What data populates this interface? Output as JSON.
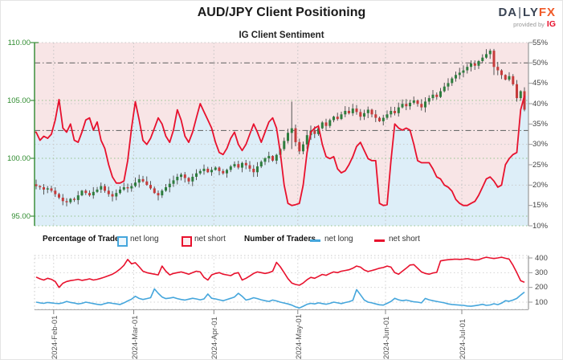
{
  "header": {
    "title": "AUD/JPY Client Positioning",
    "subtitle": "IG Client Sentiment",
    "logo": {
      "brand_left": "DA",
      "brand_bar": "|",
      "brand_right": "LY",
      "brand_accent": "FX",
      "provided_by": "provided by",
      "provider": "IG"
    }
  },
  "legend": {
    "pct_title": "Percentage of Traders",
    "pct_net_long": "net long",
    "pct_net_short": "net short",
    "num_title": "Number of Traders",
    "num_net_long": "net long",
    "num_net_short": "net short"
  },
  "main_chart": {
    "left_axis": [
      "110.00",
      "105.00",
      "100.00",
      "95.00"
    ],
    "right_axis": [
      "55%",
      "50%",
      "45%",
      "40%",
      "35%",
      "30%",
      "25%",
      "20%",
      "15%",
      "10%"
    ]
  },
  "bottom_chart": {
    "right_axis": [
      "400",
      "300",
      "200",
      "100"
    ]
  },
  "x_axis": {
    "labels": [
      "2024-Feb-01",
      "2024-Mar-01",
      "2024-Apr-01",
      "2024-May-01",
      "2024-Jun-01",
      "2024-Jul-01"
    ]
  },
  "colors": {
    "sentiment_red": "#e8112d",
    "traders_blue": "#45a6dc",
    "candle_up": "#2e7d3e",
    "candle_down": "#c63b3b",
    "wick": "#555555",
    "fill_short": "#f8e5e6",
    "fill_long": "#ddeef8",
    "axis_green": "#3c8f3c",
    "grid_green": "#94c38c",
    "grid_gray": "#c9c9c9",
    "refline_gray": "#6e6e6e",
    "spine_gray": "#999999"
  },
  "chart_data": {
    "type": [
      "candlestick+line",
      "line"
    ],
    "title": "AUD/JPY Client Positioning — IG Client Sentiment",
    "x_range": [
      "2024-Jan-25",
      "2024-Jul-23"
    ],
    "price_axis_ticks": [
      110.0,
      105.0,
      100.0,
      95.0
    ],
    "pct_axis_range": [
      10,
      55
    ],
    "count_axis_ticks": [
      400,
      300,
      200,
      100
    ],
    "reference_lines_pct": [
      50,
      33.4
    ],
    "month_start_indices": [
      5,
      26,
      47,
      69,
      92,
      112
    ],
    "price_close": [
      97.6,
      97.5,
      97.3,
      97.4,
      97.2,
      96.9,
      96.6,
      96.3,
      96.2,
      96.5,
      96.4,
      96.8,
      97.2,
      97.0,
      96.8,
      97.1,
      97.3,
      97.6,
      97.2,
      96.9,
      96.7,
      97.0,
      97.3,
      97.5,
      97.4,
      97.6,
      97.9,
      98.2,
      98.0,
      97.7,
      97.4,
      97.0,
      96.8,
      97.2,
      97.5,
      97.8,
      98.1,
      98.4,
      98.6,
      98.3,
      98.0,
      98.4,
      98.7,
      98.9,
      99.1,
      98.8,
      99.0,
      99.2,
      98.9,
      98.7,
      99.0,
      99.3,
      99.5,
      99.2,
      99.6,
      99.4,
      99.1,
      98.8,
      99.3,
      99.7,
      100.0,
      100.2,
      99.8,
      100.3,
      100.8,
      101.5,
      102.2,
      102.6,
      101.4,
      100.6,
      101.2,
      102.0,
      102.4,
      102.1,
      102.6,
      103.1,
      102.8,
      103.3,
      103.6,
      103.4,
      103.8,
      104.1,
      103.9,
      104.3,
      104.0,
      103.6,
      103.9,
      104.2,
      103.8,
      103.5,
      103.2,
      103.5,
      103.8,
      104.1,
      103.9,
      104.4,
      104.7,
      104.5,
      104.8,
      105.0,
      104.7,
      104.4,
      104.9,
      105.2,
      105.5,
      105.3,
      105.8,
      106.2,
      106.5,
      106.9,
      107.2,
      107.4,
      107.6,
      107.9,
      108.2,
      108.0,
      108.4,
      108.7,
      109.0,
      109.3,
      107.9,
      107.6,
      107.2,
      106.8,
      107.1,
      106.4,
      105.2,
      105.8,
      104.2
    ],
    "net_short_pct": [
      33,
      31,
      32,
      31.5,
      32.5,
      36,
      41,
      34,
      33,
      35,
      31,
      30.5,
      33,
      36,
      36.5,
      33.5,
      35.5,
      31,
      29,
      25,
      22,
      20.5,
      20.5,
      21,
      26,
      34,
      40.5,
      36,
      31,
      30,
      31.5,
      34,
      36.5,
      35,
      32,
      30.5,
      33.5,
      38.5,
      36,
      32,
      30.5,
      33,
      36.5,
      40,
      38,
      36,
      34,
      30.5,
      28,
      27.5,
      29,
      31.5,
      33,
      30,
      28.5,
      30,
      32.5,
      35,
      33,
      30.5,
      33,
      35.5,
      36.5,
      34,
      28,
      20,
      15.5,
      15,
      15.2,
      15.5,
      20,
      28,
      33,
      34,
      34.5,
      30,
      27,
      26.5,
      27,
      24,
      23,
      23.5,
      25,
      27,
      29.5,
      30.5,
      28.5,
      26.5,
      26,
      26,
      15.5,
      15,
      15.2,
      26,
      35,
      34,
      33.5,
      34,
      33.5,
      30,
      26,
      25.5,
      25.5,
      25.5,
      24,
      22,
      21.5,
      20,
      19.5,
      18.5,
      16.5,
      15.5,
      15,
      15,
      15.5,
      16,
      17.5,
      19.5,
      21.5,
      22,
      21,
      19.5,
      20,
      25,
      26.5,
      27.5,
      28,
      38.5,
      42
    ],
    "traders_net_short": [
      270,
      258,
      250,
      262,
      255,
      240,
      200,
      228,
      240,
      246,
      250,
      255,
      248,
      252,
      258,
      250,
      255,
      262,
      270,
      280,
      290,
      305,
      325,
      350,
      390,
      360,
      368,
      340,
      310,
      300,
      295,
      290,
      285,
      345,
      310,
      285,
      295,
      300,
      305,
      298,
      290,
      300,
      310,
      305,
      268,
      250,
      285,
      295,
      300,
      290,
      285,
      280,
      295,
      300,
      250,
      262,
      278,
      295,
      305,
      300,
      295,
      300,
      310,
      370,
      340,
      300,
      260,
      230,
      220,
      215,
      230,
      252,
      268,
      262,
      275,
      288,
      282,
      295,
      305,
      300,
      310,
      315,
      320,
      330,
      345,
      338,
      318,
      308,
      315,
      322,
      330,
      335,
      345,
      338,
      300,
      290,
      310,
      330,
      352,
      355,
      330,
      305,
      295,
      290,
      298,
      302,
      380,
      385,
      388,
      390,
      392,
      390,
      392,
      395,
      390,
      386,
      388,
      398,
      405,
      400,
      396,
      400,
      405,
      398,
      392,
      350,
      300,
      245,
      235
    ],
    "traders_net_long": [
      100,
      95,
      92,
      98,
      95,
      92,
      90,
      95,
      105,
      98,
      94,
      88,
      92,
      100,
      95,
      90,
      85,
      82,
      90,
      96,
      92,
      88,
      84,
      95,
      108,
      120,
      140,
      125,
      118,
      124,
      130,
      190,
      160,
      135,
      124,
      128,
      132,
      124,
      118,
      114,
      120,
      126,
      122,
      116,
      122,
      155,
      126,
      122,
      116,
      110,
      118,
      126,
      135,
      160,
      140,
      114,
      120,
      130,
      124,
      116,
      110,
      105,
      114,
      108,
      100,
      94,
      88,
      80,
      68,
      60,
      72,
      85,
      92,
      88,
      95,
      90,
      86,
      92,
      100,
      95,
      90,
      97,
      103,
      112,
      185,
      150,
      115,
      100,
      95,
      88,
      82,
      80,
      92,
      105,
      126,
      116,
      110,
      114,
      108,
      102,
      100,
      95,
      125,
      116,
      110,
      105,
      100,
      95,
      88,
      84,
      82,
      80,
      78,
      74,
      72,
      76,
      80,
      85,
      78,
      81,
      89,
      83,
      93,
      110,
      106,
      114,
      125,
      148,
      168
    ],
    "special_wicks": {
      "8": [
        96.55,
        95.85
      ],
      "67": [
        104.9,
        100.8
      ],
      "120": [
        109.45,
        107.2
      ]
    }
  }
}
